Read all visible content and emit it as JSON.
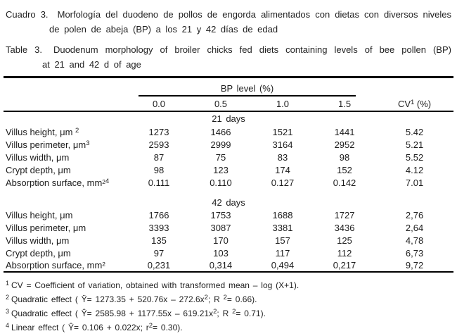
{
  "captions": {
    "spanish": {
      "label": "Cuadro 3.",
      "line1": "Morfología del duodeno de pollos de engorda alimentados con dietas con diversos niveles",
      "line2": "de polen de abeja (BP) a los 21 y 42 días de edad"
    },
    "english": {
      "label": "Table 3.",
      "line1": "Duodenum morphology of broiler chicks fed diets containing levels of bee pollen (BP)",
      "line2": "at 21 and 42 d of age"
    }
  },
  "table": {
    "group_header": "BP level (%)",
    "bp_columns": [
      "0.0",
      "0.5",
      "1.0",
      "1.5"
    ],
    "cv_header": {
      "base": "CV",
      "sup": "1",
      "rest": " (%)"
    },
    "sections": [
      {
        "title": "21 days",
        "rows": [
          {
            "label": "Villus height, μm ",
            "sup_sq": "",
            "sup_ref": "2",
            "values": [
              "1273",
              "1466",
              "1521",
              "1441"
            ],
            "cv": "5.42"
          },
          {
            "label": "Villus perimeter, μm",
            "sup_sq": "",
            "sup_ref": "3",
            "values": [
              "2593",
              "2999",
              "3164",
              "2952"
            ],
            "cv": "5.21"
          },
          {
            "label": "Villus width, μm",
            "sup_sq": "",
            "sup_ref": "",
            "values": [
              "87",
              "75",
              "83",
              "98"
            ],
            "cv": "5.52"
          },
          {
            "label": "Crypt depth, μm",
            "sup_sq": "",
            "sup_ref": "",
            "values": [
              "98",
              "123",
              "174",
              "152"
            ],
            "cv": "4.12"
          },
          {
            "label": "Absorption surface, mm",
            "sup_sq": "2",
            "sup_ref": "4",
            "values": [
              "0.111",
              "0.110",
              "0.127",
              "0.142"
            ],
            "cv": "7.01"
          }
        ]
      },
      {
        "title": "42 days",
        "rows": [
          {
            "label": "Villus height, μm",
            "sup_sq": "",
            "sup_ref": "",
            "values": [
              "1766",
              "1753",
              "1688",
              "1727"
            ],
            "cv": "2,76"
          },
          {
            "label": "Villus perimeter, μm",
            "sup_sq": "",
            "sup_ref": "",
            "values": [
              "3393",
              "3087",
              "3381",
              "3436"
            ],
            "cv": "2,64"
          },
          {
            "label": "Villus width, μm",
            "sup_sq": "",
            "sup_ref": "",
            "values": [
              "135",
              "170",
              "157",
              "125"
            ],
            "cv": "4,78"
          },
          {
            "label": "Crypt depth, μm",
            "sup_sq": "",
            "sup_ref": "",
            "values": [
              "97",
              "103",
              "117",
              "112"
            ],
            "cv": "6,73"
          },
          {
            "label": "Absorption surface, mm",
            "sup_sq": "2",
            "sup_ref": "",
            "values": [
              "0,231",
              "0,314",
              "0,494",
              "0,217"
            ],
            "cv": "9,72"
          }
        ]
      }
    ]
  },
  "footnotes": [
    {
      "marker": "1",
      "parts": [
        "CV = Coefficient of variation, obtained with transformed mean – log (X+1)."
      ]
    },
    {
      "marker": "2",
      "parts": [
        "Quadratic effect ( Ÿ= 1273.35 + 520.76x – 272.6x",
        "2",
        "; R ",
        "2",
        "= 0.66)."
      ]
    },
    {
      "marker": "3",
      "parts": [
        "Quadratic effect ( Ŷ= 2585.98 + 1177.55x – 619.21x",
        "2",
        "; R ",
        "2",
        "= 0.71)."
      ]
    },
    {
      "marker": "4",
      "parts": [
        "Linear effect ( Ŷ= 0.106 + 0.022x; r",
        "2",
        "= 0.30)."
      ]
    }
  ],
  "colors": {
    "background": "#ffffff",
    "text": "#1c1c1c",
    "rule": "#000000"
  }
}
